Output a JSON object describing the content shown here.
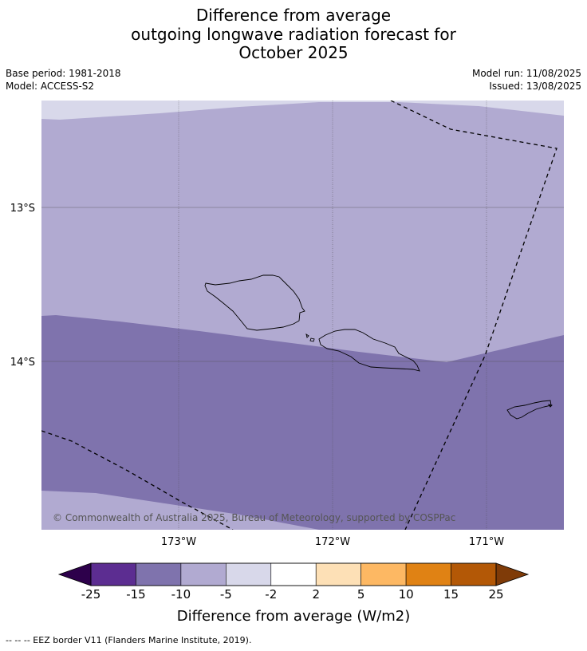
{
  "title": {
    "line1": "Difference from average",
    "line2": "outgoing longwave radiation forecast for",
    "line3": "October 2025"
  },
  "meta": {
    "base_period": "Base period: 1981-2018",
    "model": "Model: ACCESS-S2",
    "model_run": "Model run: 11/08/2025",
    "issued": "Issued: 13/08/2025"
  },
  "map": {
    "lat_labels": [
      "13°S",
      "14°S"
    ],
    "lon_labels": [
      "173°W",
      "172°W",
      "171°W"
    ],
    "copyright": "© Commonwealth of Australia 2025, Bureau of Meteorology, supported by COSPPac",
    "region_colors": {
      "band_-5_-2": "#d8d8ea",
      "band_-10_-5": "#b1aad1",
      "band_-15_-10": "#7f73ad"
    }
  },
  "colorbar": {
    "ticks": [
      "-25",
      "-15",
      "-10",
      "-5",
      "-2",
      "2",
      "5",
      "10",
      "15",
      "25"
    ],
    "colors": [
      "#5c2d91",
      "#7f73ad",
      "#b1aad1",
      "#d8d8ea",
      "#ffffff",
      "#fde0b6",
      "#fdb863",
      "#e08214",
      "#b35806"
    ],
    "under_color": "#2d004b",
    "over_color": "#7f3b08",
    "label": "Difference from average (W/m2)"
  },
  "footnote": "--  --  -- EEZ border V11 (Flanders Marine Institute, 2019)."
}
